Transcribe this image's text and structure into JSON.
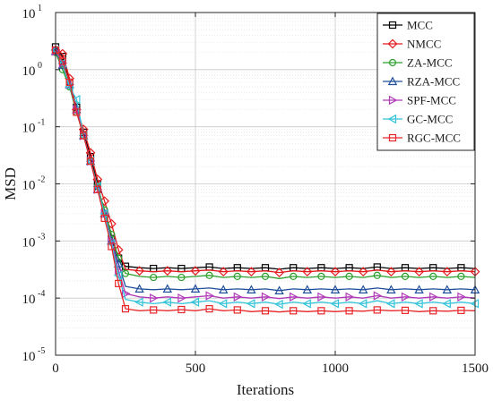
{
  "chart_data": {
    "type": "line",
    "xlabel": "Iterations",
    "ylabel": "MSD",
    "xlim": [
      0,
      1500
    ],
    "ylim": [
      1e-05,
      10
    ],
    "yscale": "log",
    "xticks": [
      "0",
      "500",
      "1000",
      "1500"
    ],
    "yticks": [
      {
        "base": "10",
        "exp": "-5"
      },
      {
        "base": "10",
        "exp": "-4"
      },
      {
        "base": "10",
        "exp": "-3"
      },
      {
        "base": "10",
        "exp": "-2"
      },
      {
        "base": "10",
        "exp": "-1"
      },
      {
        "base": "10",
        "exp": "0"
      },
      {
        "base": "10",
        "exp": "1"
      }
    ],
    "grid": true,
    "legend": "top-right",
    "series": [
      {
        "name": "MCC",
        "color": "#000000",
        "marker": "square",
        "x": [
          0,
          25,
          50,
          75,
          100,
          125,
          150,
          175,
          200,
          225,
          250,
          300,
          350,
          400,
          450,
          500,
          550,
          600,
          650,
          700,
          750,
          800,
          850,
          900,
          950,
          1000,
          1050,
          1100,
          1150,
          1200,
          1250,
          1300,
          1350,
          1400,
          1450,
          1500
        ],
        "y": [
          2.5,
          1.7,
          0.6,
          0.22,
          0.08,
          0.03,
          0.01,
          0.003,
          0.0011,
          0.0005,
          0.00036,
          0.00034,
          0.00033,
          0.00034,
          0.00033,
          0.00034,
          0.00035,
          0.00033,
          0.00034,
          0.00033,
          0.00034,
          0.00032,
          0.00034,
          0.00033,
          0.00034,
          0.00033,
          0.00034,
          0.00033,
          0.00035,
          0.00033,
          0.00034,
          0.00033,
          0.00034,
          0.00033,
          0.00034,
          0.00033
        ]
      },
      {
        "name": "NMCC",
        "color": "#e31a1c",
        "marker": "diamond",
        "x": [
          0,
          25,
          50,
          75,
          100,
          125,
          150,
          175,
          200,
          225,
          250,
          300,
          350,
          400,
          450,
          500,
          550,
          600,
          650,
          700,
          750,
          800,
          850,
          900,
          950,
          1000,
          1050,
          1100,
          1150,
          1200,
          1250,
          1300,
          1350,
          1400,
          1450,
          1500
        ],
        "y": [
          2.2,
          1.9,
          0.7,
          0.2,
          0.09,
          0.035,
          0.012,
          0.005,
          0.002,
          0.0007,
          0.00032,
          0.0003,
          0.00029,
          0.0003,
          0.00029,
          0.0003,
          0.00031,
          0.00029,
          0.0003,
          0.00029,
          0.0003,
          0.00028,
          0.0003,
          0.00029,
          0.0003,
          0.00029,
          0.0003,
          0.00029,
          0.00031,
          0.00029,
          0.0003,
          0.00029,
          0.0003,
          0.00029,
          0.0003,
          0.00029
        ]
      },
      {
        "name": "ZA-MCC",
        "color": "#2ca02c",
        "marker": "circle",
        "x": [
          0,
          25,
          50,
          75,
          100,
          125,
          150,
          175,
          200,
          225,
          250,
          300,
          350,
          400,
          450,
          500,
          550,
          600,
          650,
          700,
          750,
          800,
          850,
          900,
          950,
          1000,
          1050,
          1100,
          1150,
          1200,
          1250,
          1300,
          1350,
          1400,
          1450,
          1500
        ],
        "y": [
          2.0,
          1.0,
          0.5,
          0.18,
          0.07,
          0.025,
          0.009,
          0.0035,
          0.0013,
          0.0005,
          0.00027,
          0.00024,
          0.00023,
          0.00024,
          0.00023,
          0.00024,
          0.00025,
          0.00023,
          0.00024,
          0.00023,
          0.00024,
          0.00022,
          0.00024,
          0.00023,
          0.00024,
          0.00023,
          0.00024,
          0.00023,
          0.00025,
          0.00023,
          0.00024,
          0.00023,
          0.00024,
          0.00023,
          0.00024,
          0.00023
        ]
      },
      {
        "name": "RZA-MCC",
        "color": "#1f4e9c",
        "marker": "triangle-up",
        "x": [
          0,
          25,
          50,
          75,
          100,
          125,
          150,
          175,
          200,
          225,
          250,
          300,
          350,
          400,
          450,
          500,
          550,
          600,
          650,
          700,
          750,
          800,
          850,
          900,
          950,
          1000,
          1050,
          1100,
          1150,
          1200,
          1250,
          1300,
          1350,
          1400,
          1450,
          1500
        ],
        "y": [
          2.1,
          1.2,
          0.55,
          0.2,
          0.07,
          0.025,
          0.008,
          0.003,
          0.001,
          0.0004,
          0.00016,
          0.000145,
          0.00014,
          0.000145,
          0.00014,
          0.000145,
          0.00015,
          0.00014,
          0.000145,
          0.00014,
          0.000145,
          0.000135,
          0.000145,
          0.00014,
          0.000145,
          0.00014,
          0.000145,
          0.00014,
          0.00015,
          0.00014,
          0.000145,
          0.00014,
          0.000145,
          0.00014,
          0.000145,
          0.00014
        ]
      },
      {
        "name": "SPF-MCC",
        "color": "#b03ab8",
        "marker": "triangle-right",
        "x": [
          0,
          25,
          50,
          75,
          100,
          125,
          150,
          175,
          200,
          225,
          250,
          300,
          350,
          400,
          450,
          500,
          550,
          600,
          650,
          700,
          750,
          800,
          850,
          900,
          950,
          1000,
          1050,
          1100,
          1150,
          1200,
          1250,
          1300,
          1350,
          1400,
          1450,
          1500
        ],
        "y": [
          2.1,
          1.3,
          0.55,
          0.2,
          0.07,
          0.025,
          0.008,
          0.003,
          0.001,
          0.0003,
          0.00012,
          0.000105,
          0.0001,
          0.000105,
          0.0001,
          0.000105,
          0.00011,
          0.0001,
          0.000105,
          0.0001,
          0.000105,
          9.8e-05,
          0.000105,
          0.0001,
          0.000105,
          0.0001,
          0.000105,
          0.0001,
          0.00011,
          0.0001,
          0.000105,
          0.0001,
          0.000105,
          0.0001,
          0.000105,
          0.0001
        ]
      },
      {
        "name": "GC-MCC",
        "color": "#33c3d8",
        "marker": "triangle-left",
        "x": [
          0,
          25,
          50,
          75,
          100,
          125,
          150,
          175,
          200,
          225,
          250,
          300,
          350,
          400,
          450,
          500,
          550,
          600,
          650,
          700,
          750,
          800,
          850,
          900,
          950,
          1000,
          1050,
          1100,
          1150,
          1200,
          1250,
          1300,
          1350,
          1400,
          1450,
          1500
        ],
        "y": [
          2.2,
          1.3,
          0.5,
          0.3,
          0.07,
          0.025,
          0.009,
          0.003,
          0.0009,
          0.00025,
          9.5e-05,
          8.5e-05,
          8e-05,
          8.5e-05,
          8e-05,
          8.5e-05,
          9e-05,
          8e-05,
          8.5e-05,
          8e-05,
          8.5e-05,
          7.8e-05,
          8.5e-05,
          8e-05,
          8.5e-05,
          8e-05,
          8.5e-05,
          8e-05,
          9e-05,
          8e-05,
          8.5e-05,
          8e-05,
          8.5e-05,
          8e-05,
          8.5e-05,
          8e-05
        ]
      },
      {
        "name": "RGC-MCC",
        "color": "#e8262a",
        "marker": "square",
        "x": [
          0,
          25,
          50,
          75,
          100,
          125,
          150,
          175,
          200,
          225,
          250,
          300,
          350,
          400,
          450,
          500,
          550,
          600,
          650,
          700,
          750,
          800,
          850,
          900,
          950,
          1000,
          1050,
          1100,
          1150,
          1200,
          1250,
          1300,
          1350,
          1400,
          1450,
          1500
        ],
        "y": [
          2.2,
          1.4,
          0.6,
          0.18,
          0.07,
          0.025,
          0.008,
          0.0025,
          0.0008,
          0.00018,
          6.5e-05,
          6e-05,
          6.2e-05,
          6e-05,
          6.3e-05,
          6e-05,
          6.5e-05,
          6e-05,
          6.2e-05,
          5.8e-05,
          6e-05,
          5.7e-05,
          6e-05,
          5.8e-05,
          6e-05,
          5.8e-05,
          6e-05,
          5.9e-05,
          6.2e-05,
          6e-05,
          6.1e-05,
          5.8e-05,
          6e-05,
          5.9e-05,
          6.1e-05,
          6e-05
        ]
      }
    ]
  }
}
